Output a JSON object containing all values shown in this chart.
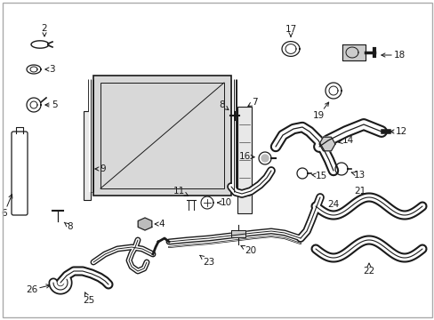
{
  "bg_color": "#ffffff",
  "line_color": "#1a1a1a",
  "gray_fill": "#d8d8d8",
  "label_fontsize": 7.5,
  "fig_w": 4.89,
  "fig_h": 3.6,
  "dpi": 100
}
